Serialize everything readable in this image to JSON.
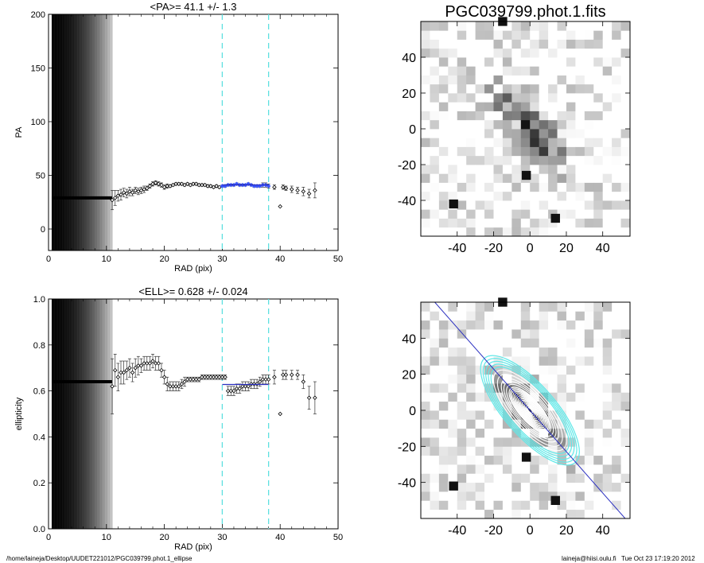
{
  "image_title": "PGC039799.phot.1.fits",
  "footer": {
    "path": "/home/laineja/Desktop/UUDET221012/PGC039799.phot.1_ellipse",
    "user": "laineja@hiisi.oulu.fi",
    "date": "Tue Oct 23 17:19:20 2012"
  },
  "colors": {
    "fit": "#2a2fc0",
    "marker": "#3a56ff",
    "range": "#5ee0e0",
    "iso": "#5fe8e8"
  },
  "chart_data": [
    {
      "type": "scatter",
      "title": "<PA>=  41.1 +/-   1.3",
      "xlabel": "RAD (pix)",
      "ylabel": "PA",
      "xlim": [
        0,
        50
      ],
      "ylim": [
        -20,
        200
      ],
      "xticks": [
        "0",
        "10",
        "20",
        "30",
        "40",
        "50"
      ],
      "yticks": [
        "0",
        "50",
        "100",
        "150",
        "200"
      ],
      "range_lines_x": [
        30,
        38
      ],
      "mean": 41.1,
      "fit_range": [
        30,
        38
      ],
      "inner_value": 29,
      "inner_region_end": 11,
      "points": [
        [
          11,
          27
        ],
        [
          11.5,
          29
        ],
        [
          12,
          31
        ],
        [
          12.5,
          32
        ],
        [
          13,
          34
        ],
        [
          13.5,
          33
        ],
        [
          14,
          35
        ],
        [
          14.5,
          34
        ],
        [
          15,
          36
        ],
        [
          15.5,
          35
        ],
        [
          16,
          36
        ],
        [
          16.5,
          37
        ],
        [
          17,
          38
        ],
        [
          17.5,
          40
        ],
        [
          18,
          42
        ],
        [
          18.5,
          43
        ],
        [
          19,
          42
        ],
        [
          19.5,
          41
        ],
        [
          20,
          39
        ],
        [
          20.5,
          40
        ],
        [
          21,
          40
        ],
        [
          21.5,
          41
        ],
        [
          22,
          42
        ],
        [
          22.5,
          42
        ],
        [
          23,
          42
        ],
        [
          23.5,
          41
        ],
        [
          24,
          42
        ],
        [
          24.5,
          41
        ],
        [
          25,
          42
        ],
        [
          25.5,
          42
        ],
        [
          26,
          41
        ],
        [
          26.5,
          41
        ],
        [
          27,
          41
        ],
        [
          27.5,
          40
        ],
        [
          28,
          40
        ],
        [
          28.5,
          39
        ],
        [
          29,
          40
        ],
        [
          29.5,
          39
        ],
        [
          30,
          40
        ],
        [
          30.5,
          40
        ],
        [
          31,
          41
        ],
        [
          31.5,
          41
        ],
        [
          32,
          41
        ],
        [
          32.5,
          42
        ],
        [
          33,
          41
        ],
        [
          33.5,
          41
        ],
        [
          34,
          41
        ],
        [
          34.5,
          42
        ],
        [
          35,
          41
        ],
        [
          35.5,
          40
        ],
        [
          36,
          40
        ],
        [
          36.5,
          40
        ],
        [
          37,
          41
        ],
        [
          37.5,
          41
        ],
        [
          38,
          40
        ],
        [
          39,
          39
        ],
        [
          40,
          21
        ],
        [
          40.5,
          39
        ],
        [
          41,
          38
        ],
        [
          42,
          37
        ],
        [
          43,
          36
        ],
        [
          44,
          35
        ],
        [
          45,
          33
        ],
        [
          46,
          36
        ]
      ],
      "errors": [
        [
          11,
          9
        ],
        [
          11.5,
          7
        ],
        [
          12,
          5
        ],
        [
          12.5,
          5
        ],
        [
          13,
          4
        ],
        [
          13.5,
          4
        ],
        [
          14,
          4
        ],
        [
          14.5,
          3
        ],
        [
          15,
          3
        ],
        [
          15.5,
          3
        ],
        [
          16,
          3
        ],
        [
          16.5,
          3
        ],
        [
          17,
          2
        ],
        [
          17.5,
          2
        ],
        [
          18,
          2
        ],
        [
          18.5,
          2
        ],
        [
          19,
          2
        ],
        [
          19.5,
          2
        ],
        [
          20,
          2
        ],
        [
          20.5,
          2
        ],
        [
          21,
          1
        ],
        [
          21.5,
          1
        ],
        [
          22,
          1
        ],
        [
          22.5,
          1
        ],
        [
          23,
          1
        ],
        [
          23.5,
          1
        ],
        [
          24,
          1
        ],
        [
          24.5,
          1
        ],
        [
          25,
          1
        ],
        [
          25.5,
          1
        ],
        [
          26,
          1
        ],
        [
          26.5,
          1
        ],
        [
          27,
          1
        ],
        [
          27.5,
          1
        ],
        [
          28,
          1
        ],
        [
          28.5,
          1
        ],
        [
          29,
          1
        ],
        [
          29.5,
          1
        ],
        [
          30,
          1
        ],
        [
          30.5,
          1
        ],
        [
          31,
          1
        ],
        [
          31.5,
          1
        ],
        [
          32,
          1
        ],
        [
          32.5,
          1
        ],
        [
          33,
          1
        ],
        [
          33.5,
          1
        ],
        [
          34,
          1
        ],
        [
          34.5,
          1
        ],
        [
          35,
          1
        ],
        [
          35.5,
          1
        ],
        [
          36,
          1
        ],
        [
          36.5,
          1
        ],
        [
          37,
          2
        ],
        [
          37.5,
          2
        ],
        [
          38,
          2
        ],
        [
          39,
          2
        ],
        [
          40,
          0
        ],
        [
          40.5,
          2
        ],
        [
          41,
          2
        ],
        [
          42,
          3
        ],
        [
          43,
          3
        ],
        [
          44,
          4
        ],
        [
          45,
          4
        ],
        [
          46,
          7
        ]
      ]
    },
    {
      "type": "scatter",
      "title": "<ELL>= 0.628 +/-  0.024",
      "xlabel": "RAD (pix)",
      "ylabel": "ellipticity",
      "xlim": [
        0,
        50
      ],
      "ylim": [
        0,
        1.0
      ],
      "xticks": [
        "0",
        "10",
        "20",
        "30",
        "40",
        "50"
      ],
      "yticks": [
        "0.0",
        "0.2",
        "0.4",
        "0.6",
        "0.8",
        "1.0"
      ],
      "range_lines_x": [
        30,
        38
      ],
      "mean": 0.628,
      "fit_range": [
        30,
        38
      ],
      "inner_value": 0.64,
      "inner_region_end": 11,
      "points": [
        [
          11,
          0.62
        ],
        [
          11.5,
          0.69
        ],
        [
          12,
          0.66
        ],
        [
          12.5,
          0.68
        ],
        [
          13,
          0.68
        ],
        [
          13.5,
          0.69
        ],
        [
          14,
          0.7
        ],
        [
          14.5,
          0.68
        ],
        [
          15,
          0.7
        ],
        [
          15.5,
          0.71
        ],
        [
          16,
          0.71
        ],
        [
          16.5,
          0.72
        ],
        [
          17,
          0.72
        ],
        [
          17.5,
          0.72
        ],
        [
          18,
          0.73
        ],
        [
          18.5,
          0.72
        ],
        [
          19,
          0.72
        ],
        [
          19.5,
          0.69
        ],
        [
          20,
          0.66
        ],
        [
          20.5,
          0.63
        ],
        [
          21,
          0.62
        ],
        [
          21.5,
          0.62
        ],
        [
          22,
          0.62
        ],
        [
          22.5,
          0.62
        ],
        [
          23,
          0.63
        ],
        [
          23.5,
          0.64
        ],
        [
          24,
          0.65
        ],
        [
          24.5,
          0.65
        ],
        [
          25,
          0.65
        ],
        [
          25.5,
          0.65
        ],
        [
          26,
          0.65
        ],
        [
          26.5,
          0.66
        ],
        [
          27,
          0.66
        ],
        [
          27.5,
          0.66
        ],
        [
          28,
          0.66
        ],
        [
          28.5,
          0.66
        ],
        [
          29,
          0.66
        ],
        [
          29.5,
          0.66
        ],
        [
          30,
          0.66
        ],
        [
          30.5,
          0.66
        ],
        [
          31,
          0.6
        ],
        [
          31.5,
          0.6
        ],
        [
          32,
          0.6
        ],
        [
          32.5,
          0.61
        ],
        [
          33,
          0.61
        ],
        [
          33.5,
          0.62
        ],
        [
          34,
          0.62
        ],
        [
          34.5,
          0.62
        ],
        [
          35,
          0.63
        ],
        [
          35.5,
          0.63
        ],
        [
          36,
          0.63
        ],
        [
          36.5,
          0.64
        ],
        [
          37,
          0.65
        ],
        [
          37.5,
          0.65
        ],
        [
          38,
          0.65
        ],
        [
          39,
          0.66
        ],
        [
          40,
          0.5
        ],
        [
          40.5,
          0.67
        ],
        [
          41,
          0.67
        ],
        [
          42,
          0.67
        ],
        [
          43,
          0.67
        ],
        [
          44,
          0.64
        ],
        [
          45,
          0.57
        ],
        [
          46,
          0.57
        ]
      ],
      "errors": [
        [
          11,
          0.12
        ],
        [
          11.5,
          0.07
        ],
        [
          12,
          0.06
        ],
        [
          12.5,
          0.05
        ],
        [
          13,
          0.05
        ],
        [
          13.5,
          0.04
        ],
        [
          14,
          0.04
        ],
        [
          14.5,
          0.04
        ],
        [
          15,
          0.04
        ],
        [
          15.5,
          0.04
        ],
        [
          16,
          0.03
        ],
        [
          16.5,
          0.03
        ],
        [
          17,
          0.03
        ],
        [
          17.5,
          0.03
        ],
        [
          18,
          0.03
        ],
        [
          18.5,
          0.03
        ],
        [
          19,
          0.03
        ],
        [
          19.5,
          0.03
        ],
        [
          20,
          0.03
        ],
        [
          20.5,
          0.03
        ],
        [
          21,
          0.02
        ],
        [
          21.5,
          0.02
        ],
        [
          22,
          0.02
        ],
        [
          22.5,
          0.02
        ],
        [
          23,
          0.02
        ],
        [
          23.5,
          0.02
        ],
        [
          24,
          0.01
        ],
        [
          24.5,
          0.01
        ],
        [
          25,
          0.01
        ],
        [
          25.5,
          0.01
        ],
        [
          26,
          0.01
        ],
        [
          26.5,
          0.01
        ],
        [
          27,
          0.01
        ],
        [
          27.5,
          0.01
        ],
        [
          28,
          0.01
        ],
        [
          28.5,
          0.01
        ],
        [
          29,
          0.01
        ],
        [
          29.5,
          0.01
        ],
        [
          30,
          0.01
        ],
        [
          30.5,
          0.01
        ],
        [
          31,
          0.02
        ],
        [
          31.5,
          0.02
        ],
        [
          32,
          0.02
        ],
        [
          32.5,
          0.02
        ],
        [
          33,
          0.02
        ],
        [
          33.5,
          0.02
        ],
        [
          34,
          0.02
        ],
        [
          34.5,
          0.02
        ],
        [
          35,
          0.02
        ],
        [
          35.5,
          0.02
        ],
        [
          36,
          0.02
        ],
        [
          36.5,
          0.02
        ],
        [
          37,
          0.02
        ],
        [
          37.5,
          0.02
        ],
        [
          38,
          0.02
        ],
        [
          39,
          0.03
        ],
        [
          40,
          0
        ],
        [
          40.5,
          0.02
        ],
        [
          41,
          0.02
        ],
        [
          42,
          0.02
        ],
        [
          43,
          0.02
        ],
        [
          44,
          0.03
        ],
        [
          45,
          0.05
        ],
        [
          46,
          0.07
        ]
      ]
    },
    {
      "type": "heatmap",
      "title": "PGC039799.phot.1.fits",
      "xlim": [
        -60,
        55
      ],
      "ylim": [
        -60,
        60
      ],
      "xticks": [
        "-40",
        "-20",
        "0",
        "20",
        "40"
      ],
      "yticks": [
        "-40",
        "-20",
        "0",
        "20",
        "40"
      ],
      "galaxy_center": [
        0,
        0
      ],
      "galaxy_pa_deg": 41.1,
      "galaxy_ellipticity": 0.63
    },
    {
      "type": "heatmap",
      "title": "",
      "xlim": [
        -60,
        55
      ],
      "ylim": [
        -60,
        60
      ],
      "xticks": [
        "-40",
        "-20",
        "0",
        "20",
        "40"
      ],
      "yticks": [
        "-40",
        "-20",
        "0",
        "20",
        "40"
      ],
      "isophote_semi_major": [
        2,
        3,
        4,
        5,
        6,
        7,
        8,
        9,
        10,
        11,
        12,
        13,
        14,
        15,
        16,
        18,
        20,
        22,
        25,
        28
      ],
      "fit_semi_major": [
        30,
        32,
        34,
        36,
        38
      ],
      "major_axis_pa_deg": 41.1,
      "ellipticity": 0.628
    }
  ]
}
